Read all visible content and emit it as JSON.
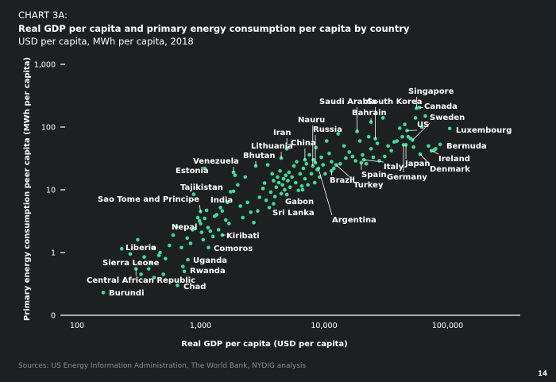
{
  "header": {
    "label": "CHART 3A:",
    "title": "Real GDP per capita and primary energy consumption per capita by country",
    "subtitle": "USD per capita, MWh per capita, 2018"
  },
  "footer": {
    "source": "Sources: US Energy Information Administration, The World Bank, NYDIG analysis",
    "page_number": "14"
  },
  "colors": {
    "background": "#1d2021",
    "point": "#3ddc97",
    "text": "#ffffff",
    "muted": "#8a8c8c"
  },
  "chart_data": {
    "type": "scatter",
    "title": "Real GDP per capita and primary energy consumption per capita by country",
    "subtitle": "USD per capita, MWh per capita, 2018",
    "xlabel": "Real GDP per capita (USD per capita)",
    "ylabel": "Primary energy consumption peer capita  (MWh per capita)",
    "x_scale": "log",
    "y_scale": "log",
    "xlim": [
      100,
      400000
    ],
    "ylim": [
      0.1,
      1000
    ],
    "x_ticks": [
      {
        "value": 100,
        "label": "100"
      },
      {
        "value": 1000,
        "label": "1,000"
      },
      {
        "value": 10000,
        "label": "10,000"
      },
      {
        "value": 100000,
        "label": "100,000"
      }
    ],
    "y_ticks": [
      {
        "value": 0.1,
        "label": "0"
      },
      {
        "value": 1,
        "label": "1"
      },
      {
        "value": 10,
        "label": "10"
      },
      {
        "value": 100,
        "label": "100"
      },
      {
        "value": 1000,
        "label": "1,000"
      }
    ],
    "grid": false,
    "legend": "none",
    "labeled_points": [
      {
        "name": "Burundi",
        "x": 163,
        "y": 0.23
      },
      {
        "name": "Central African Republic",
        "x": 300,
        "y": 0.55
      },
      {
        "name": "Sierra Leone",
        "x": 395,
        "y": 0.68
      },
      {
        "name": "Liberia",
        "x": 410,
        "y": 1.2
      },
      {
        "name": "Chad",
        "x": 650,
        "y": 0.3
      },
      {
        "name": "Rwanda",
        "x": 740,
        "y": 0.5
      },
      {
        "name": "Uganda",
        "x": 790,
        "y": 0.77
      },
      {
        "name": "Comoros",
        "x": 1160,
        "y": 1.2
      },
      {
        "name": "Kiribati",
        "x": 1500,
        "y": 1.9
      },
      {
        "name": "Nepal",
        "x": 1000,
        "y": 2.9
      },
      {
        "name": "Sao Tome and Principe",
        "x": 1000,
        "y": 4.5
      },
      {
        "name": "Tajikistan",
        "x": 880,
        "y": 8.5
      },
      {
        "name": "India",
        "x": 1850,
        "y": 9.5
      },
      {
        "name": "Estonia",
        "x": 1080,
        "y": 22
      },
      {
        "name": "Venezuela",
        "x": 1850,
        "y": 19
      },
      {
        "name": "Bhutan",
        "x": 2800,
        "y": 24
      },
      {
        "name": "Lithuania",
        "x": 4500,
        "y": 32
      },
      {
        "name": "Iran",
        "x": 5000,
        "y": 45
      },
      {
        "name": "China",
        "x": 7000,
        "y": 30
      },
      {
        "name": "Nauru",
        "x": 8100,
        "y": 24
      },
      {
        "name": "Russia",
        "x": 8500,
        "y": 27
      },
      {
        "name": "Gabon",
        "x": 6700,
        "y": 10
      },
      {
        "name": "Sri Lanka",
        "x": 3900,
        "y": 6
      },
      {
        "name": "Argentina",
        "x": 9000,
        "y": 22
      },
      {
        "name": "Brazil",
        "x": 11500,
        "y": 20
      },
      {
        "name": "Turkey",
        "x": 12500,
        "y": 25
      },
      {
        "name": "Spain",
        "x": 20000,
        "y": 27
      },
      {
        "name": "Italy",
        "x": 21000,
        "y": 30
      },
      {
        "name": "Germany",
        "x": 44000,
        "y": 52
      },
      {
        "name": "Japan",
        "x": 46000,
        "y": 52
      },
      {
        "name": "Saudi Arabia",
        "x": 18500,
        "y": 85
      },
      {
        "name": "Bahrain",
        "x": 24000,
        "y": 120
      },
      {
        "name": "South Korea",
        "x": 26000,
        "y": 65
      },
      {
        "name": "Singapore",
        "x": 56000,
        "y": 200
      },
      {
        "name": "Canada",
        "x": 59000,
        "y": 205
      },
      {
        "name": "US",
        "x": 47000,
        "y": 88
      },
      {
        "name": "Sweden",
        "x": 52000,
        "y": 62
      },
      {
        "name": "Luxembourg",
        "x": 104000,
        "y": 95
      },
      {
        "name": "Bermuda",
        "x": 87000,
        "y": 53
      },
      {
        "name": "Ireland",
        "x": 74000,
        "y": 42
      },
      {
        "name": "Denmark",
        "x": 60000,
        "y": 37
      }
    ],
    "unlabeled_points": [
      [
        230,
        1.15
      ],
      [
        270,
        0.95
      ],
      [
        310,
        1.6
      ],
      [
        330,
        0.45
      ],
      [
        350,
        0.85
      ],
      [
        380,
        0.55
      ],
      [
        420,
        0.4
      ],
      [
        460,
        0.9
      ],
      [
        470,
        1.0
      ],
      [
        500,
        0.45
      ],
      [
        520,
        0.8
      ],
      [
        560,
        1.3
      ],
      [
        600,
        1.9
      ],
      [
        640,
        2.6
      ],
      [
        700,
        1.2
      ],
      [
        720,
        0.6
      ],
      [
        780,
        1.7
      ],
      [
        830,
        1.4
      ],
      [
        860,
        2.3
      ],
      [
        900,
        2.4
      ],
      [
        950,
        3.6
      ],
      [
        980,
        3.2
      ],
      [
        1020,
        2.1
      ],
      [
        1050,
        1.6
      ],
      [
        1080,
        3.5
      ],
      [
        1120,
        4.7
      ],
      [
        1150,
        2.5
      ],
      [
        1200,
        2.2
      ],
      [
        1260,
        1.8
      ],
      [
        1300,
        3.8
      ],
      [
        1350,
        4.0
      ],
      [
        1400,
        2.3
      ],
      [
        1450,
        5.2
      ],
      [
        1500,
        4.6
      ],
      [
        1600,
        3.3
      ],
      [
        1650,
        6.3
      ],
      [
        1700,
        2.9
      ],
      [
        1750,
        9.3
      ],
      [
        1900,
        17
      ],
      [
        2000,
        12
      ],
      [
        2100,
        5.5
      ],
      [
        2200,
        3.6
      ],
      [
        2300,
        16
      ],
      [
        2400,
        6.3
      ],
      [
        2550,
        4.4
      ],
      [
        2700,
        3.0
      ],
      [
        2900,
        4.6
      ],
      [
        3000,
        7.6
      ],
      [
        3200,
        10.5
      ],
      [
        3300,
        12.8
      ],
      [
        3400,
        6.8
      ],
      [
        3500,
        25
      ],
      [
        3600,
        5.2
      ],
      [
        3700,
        9.2
      ],
      [
        3800,
        18
      ],
      [
        3900,
        14
      ],
      [
        4000,
        7.8
      ],
      [
        4100,
        11
      ],
      [
        4200,
        16
      ],
      [
        4300,
        13
      ],
      [
        4400,
        20
      ],
      [
        4500,
        8.7
      ],
      [
        4600,
        12
      ],
      [
        4700,
        15
      ],
      [
        4800,
        10
      ],
      [
        4900,
        17
      ],
      [
        5000,
        8.4
      ],
      [
        5100,
        14
      ],
      [
        5200,
        19
      ],
      [
        5300,
        11
      ],
      [
        5500,
        16
      ],
      [
        5700,
        24
      ],
      [
        5900,
        13
      ],
      [
        6000,
        28
      ],
      [
        6200,
        9.8
      ],
      [
        6400,
        18
      ],
      [
        6600,
        11.5
      ],
      [
        6800,
        22
      ],
      [
        7000,
        15
      ],
      [
        7200,
        26
      ],
      [
        7400,
        12
      ],
      [
        7600,
        36
      ],
      [
        7900,
        18
      ],
      [
        8200,
        30
      ],
      [
        8400,
        13
      ],
      [
        8600,
        47
      ],
      [
        8800,
        21
      ],
      [
        9200,
        16
      ],
      [
        9500,
        33
      ],
      [
        9800,
        25
      ],
      [
        10200,
        18
      ],
      [
        10500,
        60
      ],
      [
        11000,
        38
      ],
      [
        11500,
        28
      ],
      [
        12000,
        22
      ],
      [
        13000,
        78
      ],
      [
        13500,
        26
      ],
      [
        14500,
        50
      ],
      [
        15000,
        32
      ],
      [
        16000,
        40
      ],
      [
        17000,
        34
      ],
      [
        18000,
        29
      ],
      [
        19500,
        60
      ],
      [
        20500,
        36
      ],
      [
        22000,
        26
      ],
      [
        23000,
        70
      ],
      [
        24000,
        45
      ],
      [
        25000,
        33
      ],
      [
        27000,
        55
      ],
      [
        28000,
        29
      ],
      [
        30000,
        140
      ],
      [
        31000,
        34
      ],
      [
        33000,
        50
      ],
      [
        35000,
        42
      ],
      [
        37000,
        58
      ],
      [
        39000,
        60
      ],
      [
        41000,
        96
      ],
      [
        43000,
        70
      ],
      [
        45000,
        110
      ],
      [
        48000,
        70
      ],
      [
        50000,
        66
      ],
      [
        53000,
        48
      ],
      [
        55000,
        140
      ],
      [
        62000,
        100
      ],
      [
        66000,
        150
      ],
      [
        70000,
        50
      ],
      [
        78000,
        43
      ],
      [
        80000,
        45
      ]
    ]
  }
}
